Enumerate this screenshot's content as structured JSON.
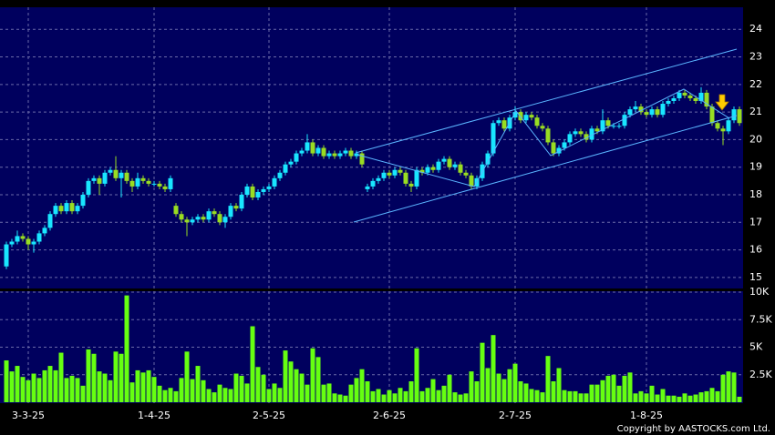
{
  "chart_data": {
    "type": "candlestick",
    "categories": [
      null,
      null,
      null,
      null,
      "3-3-25",
      null,
      null,
      null,
      null,
      null,
      null,
      null,
      null,
      null,
      null,
      null,
      null,
      null,
      null,
      null,
      null,
      null,
      null,
      null,
      null,
      null,
      null,
      "1-4-25",
      null,
      null,
      null,
      null,
      null,
      null,
      null,
      null,
      null,
      null,
      null,
      null,
      null,
      null,
      null,
      null,
      null,
      null,
      null,
      null,
      "2-5-25",
      null,
      null,
      null,
      null,
      null,
      null,
      null,
      null,
      null,
      null,
      null,
      null,
      null,
      null,
      null,
      null,
      null,
      null,
      null,
      null,
      null,
      "2-6-25",
      null,
      null,
      null,
      null,
      null,
      null,
      null,
      null,
      null,
      null,
      null,
      null,
      null,
      null,
      null,
      null,
      null,
      null,
      null,
      null,
      null,
      null,
      "2-7-25",
      null,
      null,
      null,
      null,
      null,
      null,
      null,
      null,
      null,
      null,
      null,
      null,
      null,
      null,
      null,
      null,
      null,
      null,
      null,
      null,
      null,
      null,
      null,
      "1-8-25",
      null,
      null,
      null,
      null,
      null,
      null,
      null,
      null,
      null,
      null,
      null,
      null,
      null,
      null,
      null,
      null,
      null
    ],
    "open": [
      15.4,
      16.2,
      16.3,
      16.5,
      16.4,
      16.2,
      16.3,
      16.6,
      16.8,
      17.3,
      17.6,
      17.4,
      17.7,
      17.4,
      17.6,
      18.0,
      18.5,
      18.6,
      18.4,
      18.8,
      18.9,
      18.6,
      18.8,
      18.5,
      18.3,
      18.6,
      18.5,
      18.4,
      18.4,
      18.3,
      18.2,
      17.6,
      17.3,
      17.1,
      17.0,
      17.1,
      17.2,
      17.1,
      17.4,
      17.3,
      17.0,
      17.2,
      17.6,
      17.5,
      18.0,
      18.3,
      17.9,
      18.1,
      18.2,
      18.3,
      18.6,
      18.8,
      19.1,
      19.2,
      19.5,
      19.6,
      19.9,
      19.5,
      19.7,
      19.4,
      19.5,
      19.4,
      19.5,
      19.6,
      19.4,
      19.5,
      18.2,
      18.3,
      18.5,
      18.6,
      18.8,
      18.7,
      18.9,
      18.8,
      18.4,
      18.3,
      18.9,
      18.8,
      19.0,
      18.9,
      19.2,
      19.3,
      19.0,
      19.1,
      18.8,
      18.7,
      18.3,
      18.6,
      19.1,
      19.5,
      20.6,
      20.7,
      20.4,
      20.8,
      21.0,
      20.7,
      20.9,
      20.8,
      20.5,
      20.4,
      19.9,
      19.5,
      19.7,
      19.9,
      20.2,
      20.3,
      20.2,
      20.0,
      20.4,
      20.3,
      20.7,
      20.5,
      20.5,
      20.5,
      20.9,
      21.1,
      21.2,
      21.0,
      20.9,
      21.1,
      20.9,
      21.3,
      21.4,
      21.5,
      21.7,
      21.6,
      21.5,
      21.4,
      21.7,
      21.2,
      20.6,
      20.4,
      20.3,
      20.7,
      21.1
    ],
    "high": [
      16.3,
      16.4,
      16.7,
      16.6,
      16.5,
      16.4,
      16.7,
      16.9,
      17.4,
      17.7,
      17.7,
      17.8,
      17.8,
      17.7,
      18.1,
      18.6,
      18.7,
      18.7,
      18.9,
      19.0,
      19.4,
      18.9,
      18.9,
      18.6,
      18.8,
      18.7,
      18.6,
      18.5,
      18.5,
      18.4,
      18.7,
      17.7,
      17.4,
      17.2,
      17.2,
      17.3,
      17.3,
      17.5,
      17.5,
      17.4,
      17.3,
      17.7,
      17.7,
      18.1,
      18.4,
      18.4,
      18.2,
      18.3,
      18.4,
      18.7,
      18.9,
      19.2,
      19.3,
      19.6,
      19.7,
      20.2,
      20.0,
      19.8,
      19.8,
      19.6,
      19.6,
      19.6,
      19.7,
      19.7,
      19.6,
      19.6,
      18.4,
      18.6,
      18.7,
      18.9,
      18.9,
      19.0,
      19.0,
      18.9,
      18.5,
      19.0,
      19.0,
      19.1,
      19.1,
      19.3,
      19.4,
      19.4,
      19.2,
      19.2,
      18.9,
      18.8,
      18.7,
      19.2,
      19.6,
      20.7,
      20.8,
      20.8,
      20.9,
      21.2,
      21.1,
      21.0,
      21.0,
      20.9,
      20.6,
      20.5,
      20.0,
      19.8,
      20.0,
      20.3,
      20.4,
      20.4,
      20.3,
      20.5,
      20.5,
      21.1,
      20.8,
      20.6,
      20.6,
      21.0,
      21.2,
      21.4,
      21.3,
      21.1,
      21.2,
      21.2,
      21.4,
      21.5,
      21.6,
      21.8,
      21.8,
      21.7,
      21.6,
      21.9,
      21.8,
      21.3,
      20.7,
      20.5,
      20.8,
      21.2,
      21.2
    ],
    "low": [
      15.3,
      16.1,
      16.2,
      16.3,
      16.0,
      15.9,
      16.2,
      16.5,
      16.7,
      17.2,
      17.3,
      17.3,
      17.3,
      17.3,
      17.5,
      17.9,
      18.4,
      18.0,
      18.3,
      18.7,
      18.5,
      17.9,
      18.4,
      18.1,
      18.2,
      18.4,
      18.3,
      18.3,
      18.2,
      18.1,
      18.1,
      17.2,
      17.0,
      16.5,
      16.9,
      17.0,
      17.0,
      17.0,
      17.2,
      16.9,
      16.8,
      17.1,
      17.4,
      17.4,
      17.9,
      17.8,
      17.8,
      18.0,
      18.1,
      18.2,
      18.5,
      18.7,
      19.0,
      19.1,
      19.4,
      19.5,
      19.4,
      19.4,
      19.3,
      19.3,
      19.3,
      19.3,
      19.4,
      19.3,
      19.3,
      19.0,
      18.1,
      18.2,
      18.4,
      18.5,
      18.6,
      18.6,
      18.7,
      18.3,
      18.1,
      18.2,
      18.7,
      18.7,
      18.8,
      18.8,
      19.1,
      18.9,
      18.9,
      18.7,
      18.6,
      18.2,
      18.2,
      18.5,
      19.0,
      19.4,
      20.5,
      20.3,
      20.3,
      20.7,
      20.6,
      20.6,
      20.7,
      20.4,
      20.3,
      19.8,
      19.4,
      19.4,
      19.6,
      19.8,
      20.1,
      20.1,
      19.9,
      19.9,
      20.2,
      20.2,
      20.4,
      20.4,
      20.4,
      20.4,
      20.8,
      21.0,
      20.9,
      20.8,
      20.8,
      20.8,
      20.8,
      21.2,
      21.3,
      21.4,
      21.5,
      21.4,
      21.3,
      21.3,
      21.1,
      20.5,
      20.3,
      19.8,
      20.2,
      20.6,
      20.5
    ],
    "close": [
      16.2,
      16.3,
      16.5,
      16.4,
      16.2,
      16.3,
      16.6,
      16.8,
      17.3,
      17.6,
      17.4,
      17.7,
      17.4,
      17.6,
      18.0,
      18.5,
      18.6,
      18.4,
      18.8,
      18.9,
      18.6,
      18.8,
      18.5,
      18.3,
      18.6,
      18.5,
      18.4,
      18.4,
      18.3,
      18.2,
      18.6,
      17.3,
      17.1,
      17.0,
      17.1,
      17.2,
      17.1,
      17.4,
      17.3,
      17.0,
      17.2,
      17.6,
      17.5,
      18.0,
      18.3,
      17.9,
      18.1,
      18.2,
      18.3,
      18.6,
      18.8,
      19.1,
      19.2,
      19.5,
      19.6,
      19.9,
      19.5,
      19.7,
      19.4,
      19.5,
      19.4,
      19.5,
      19.6,
      19.4,
      19.5,
      19.1,
      18.3,
      18.5,
      18.6,
      18.8,
      18.7,
      18.9,
      18.8,
      18.4,
      18.3,
      18.9,
      18.8,
      19.0,
      18.9,
      19.2,
      19.3,
      19.0,
      19.1,
      18.8,
      18.7,
      18.3,
      18.6,
      19.1,
      19.5,
      20.6,
      20.7,
      20.4,
      20.8,
      21.0,
      20.7,
      20.9,
      20.8,
      20.5,
      20.4,
      19.9,
      19.5,
      19.7,
      19.9,
      20.2,
      20.3,
      20.2,
      20.0,
      20.4,
      20.3,
      20.7,
      20.5,
      20.5,
      20.5,
      20.9,
      21.1,
      21.2,
      21.0,
      20.9,
      21.1,
      20.9,
      21.3,
      21.4,
      21.5,
      21.7,
      21.6,
      21.5,
      21.4,
      21.7,
      21.2,
      20.6,
      20.4,
      20.3,
      20.7,
      21.1,
      20.6
    ],
    "up_color": "#19e6ff",
    "down_color": "#99dd22",
    "ylim": [
      14.6,
      24.8
    ],
    "yticks": [
      15,
      16,
      17,
      18,
      19,
      20,
      21,
      22,
      23,
      24
    ],
    "grid": true,
    "volume": {
      "color": "#66ff11",
      "values": [
        3800,
        2800,
        3300,
        2300,
        2000,
        2600,
        2200,
        2900,
        3300,
        2900,
        4500,
        2200,
        2400,
        2200,
        1500,
        4800,
        4400,
        2800,
        2600,
        2000,
        4600,
        4400,
        9700,
        1800,
        2900,
        2700,
        2900,
        2300,
        1500,
        1100,
        1300,
        1000,
        2200,
        4600,
        2100,
        3300,
        2000,
        1200,
        900,
        1600,
        1300,
        1200,
        2600,
        2400,
        1700,
        6900,
        3200,
        2500,
        1200,
        1700,
        1300,
        4700,
        3700,
        3000,
        2600,
        1600,
        4900,
        4100,
        1600,
        1700,
        800,
        700,
        600,
        1600,
        2200,
        3000,
        1900,
        1000,
        1200,
        700,
        1100,
        800,
        1300,
        1000,
        1900,
        4900,
        1000,
        1300,
        2100,
        1100,
        1500,
        2500,
        900,
        700,
        800,
        2800,
        1900,
        5400,
        3100,
        6100,
        2600,
        2100,
        3000,
        3500,
        1900,
        1700,
        1200,
        1100,
        900,
        4200,
        1900,
        3100,
        1100,
        1000,
        1000,
        800,
        800,
        1600,
        1600,
        2000,
        2400,
        2500,
        1500,
        2400,
        2700,
        800,
        1000,
        800,
        1500,
        700,
        1200,
        600,
        600,
        500,
        800,
        600,
        700,
        900,
        1000,
        1300,
        1000,
        2500,
        2800,
        2700,
        500
      ],
      "ylim": [
        0,
        10000
      ],
      "yticks": [
        {
          "value": 2500,
          "label": "2.5K"
        },
        {
          "value": 5000,
          "label": "5K"
        },
        {
          "value": 7500,
          "label": "7.5K"
        },
        {
          "value": 10000,
          "label": "10K"
        }
      ]
    },
    "copyright": "Copyright by AASTOCKS.com Ltd."
  }
}
